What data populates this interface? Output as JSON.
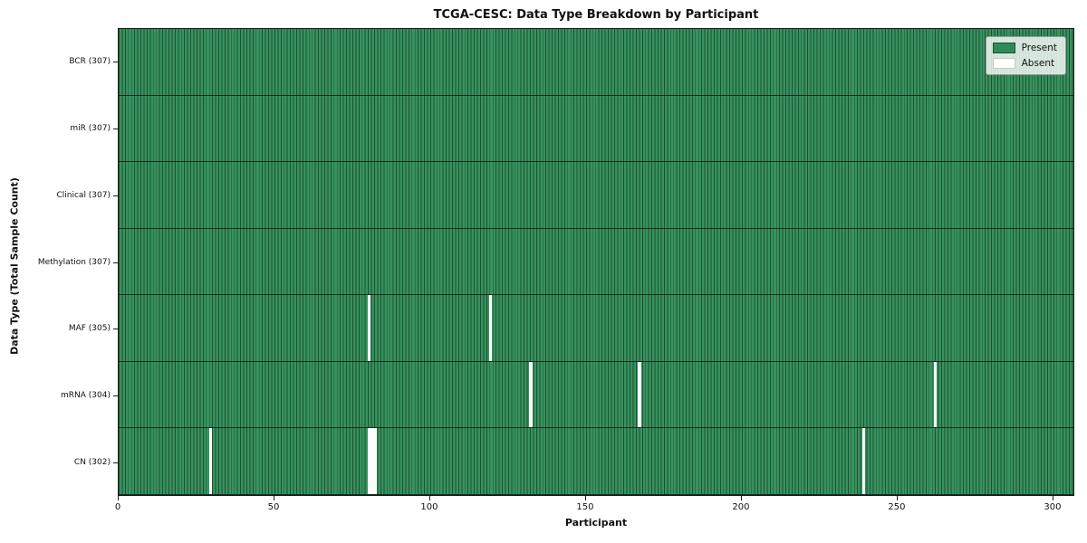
{
  "title": "TCGA-CESC: Data Type Breakdown by Participant",
  "x_axis": {
    "label": "Participant"
  },
  "y_axis": {
    "label": "Data Type (Total Sample Count)"
  },
  "colors": {
    "present": "#2e8b57",
    "present_stripe_dark": "#1c5132",
    "absent": "#fcfcfc",
    "legend_border": "#999999",
    "axis": "#1a1a1a"
  },
  "legend": {
    "entries": [
      {
        "label": "Present",
        "color": "#2e8b57",
        "edge": "#1c5132"
      },
      {
        "label": "Absent",
        "color": "#ffffff",
        "edge": "#c9c9c9"
      }
    ]
  },
  "chart_data": {
    "type": "heatmap",
    "title": "TCGA-CESC: Data Type Breakdown by Participant",
    "xlabel": "Participant",
    "ylabel": "Data Type (Total Sample Count)",
    "n_participants": 307,
    "x_range": [
      0,
      307
    ],
    "x_ticks": [
      0,
      50,
      100,
      150,
      200,
      250,
      300
    ],
    "legend_position": "upper right",
    "grid": "cell-edges",
    "rows": [
      {
        "data_type": "BCR",
        "label": "BCR (307)",
        "present_count": 307,
        "absent_participants": []
      },
      {
        "data_type": "miR",
        "label": "miR (307)",
        "present_count": 307,
        "absent_participants": []
      },
      {
        "data_type": "Clinical",
        "label": "Clinical (307)",
        "present_count": 307,
        "absent_participants": []
      },
      {
        "data_type": "Methylation",
        "label": "Methylation (307)",
        "present_count": 307,
        "absent_participants": []
      },
      {
        "data_type": "MAF",
        "label": "MAF (305)",
        "present_count": 305,
        "absent_participants": [
          80,
          119
        ]
      },
      {
        "data_type": "mRNA",
        "label": "mRNA (304)",
        "present_count": 304,
        "absent_participants": [
          132,
          167,
          262
        ]
      },
      {
        "data_type": "CN",
        "label": "CN (302)",
        "present_count": 302,
        "absent_participants": [
          29,
          80,
          81,
          82,
          239
        ]
      }
    ]
  }
}
